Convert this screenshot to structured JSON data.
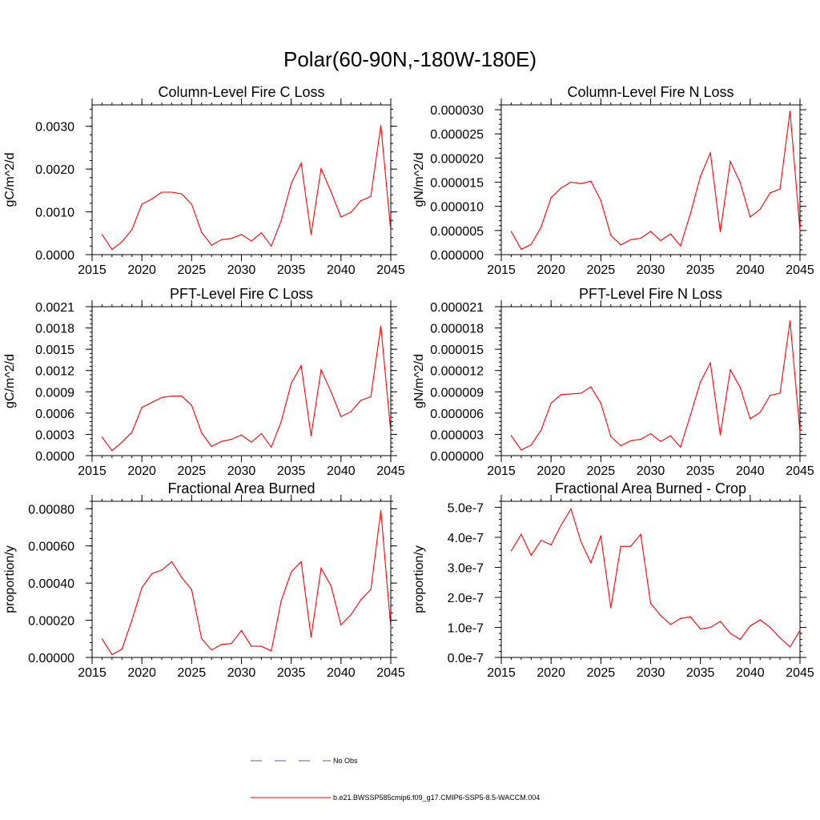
{
  "main_title": "Polar(60-90N,-180W-180E)",
  "colors": {
    "model_line": "#ff0000",
    "obs_line": "#5a5aa8",
    "axis": "#000000"
  },
  "legend": {
    "entries": [
      {
        "label": "No Obs",
        "style": "dashed",
        "color": "#5a5aa8"
      },
      {
        "label": "b.e21.BWSSP585cmip6.f09_g17.CMIP6-SSP5-8.5-WACCM.004",
        "style": "solid",
        "color": "#ff0000"
      }
    ]
  },
  "chart_data": [
    {
      "type": "line",
      "title": "Column-Level Fire C Loss",
      "xlabel": "",
      "ylabel": "gC/m^2/d",
      "xlim": [
        2015,
        2045
      ],
      "ylim": [
        0,
        0.0035
      ],
      "x_ticks": [
        2015,
        2020,
        2025,
        2030,
        2035,
        2040,
        2045
      ],
      "x_tick_labels": [
        "2015",
        "2020",
        "2025",
        "2030",
        "2035",
        "2040",
        "2045"
      ],
      "y_ticks": [
        0,
        0.001,
        0.002,
        0.003
      ],
      "y_tick_labels": [
        "0.0000",
        "0.0010",
        "0.0020",
        "0.0030"
      ],
      "series": [
        {
          "name": "b.e21.BWSSP585cmip6.f09_g17.CMIP6-SSP5-8.5-WACCM.004",
          "x": [
            2016,
            2017,
            2018,
            2019,
            2020,
            2021,
            2022,
            2023,
            2024,
            2025,
            2026,
            2027,
            2028,
            2029,
            2030,
            2031,
            2032,
            2033,
            2034,
            2035,
            2036,
            2037,
            2038,
            2039,
            2040,
            2041,
            2042,
            2043,
            2044,
            2045
          ],
          "values": [
            0.00047,
            0.00012,
            0.0003,
            0.00058,
            0.00118,
            0.0013,
            0.00146,
            0.00146,
            0.00142,
            0.00118,
            0.00052,
            0.00022,
            0.00035,
            0.00038,
            0.00047,
            0.00032,
            0.00051,
            0.0002,
            0.0008,
            0.00166,
            0.00214,
            0.00047,
            0.00201,
            0.00147,
            0.00088,
            0.00099,
            0.00126,
            0.00136,
            0.00302,
            0.00055
          ]
        }
      ]
    },
    {
      "type": "line",
      "title": "Column-Level Fire N Loss",
      "xlabel": "",
      "ylabel": "gN/m^2/d",
      "xlim": [
        2015,
        2045
      ],
      "ylim": [
        0,
        3.1e-05
      ],
      "x_ticks": [
        2015,
        2020,
        2025,
        2030,
        2035,
        2040,
        2045
      ],
      "x_tick_labels": [
        "2015",
        "2020",
        "2025",
        "2030",
        "2035",
        "2040",
        "2045"
      ],
      "y_ticks": [
        0,
        5e-06,
        1e-05,
        1.5e-05,
        2e-05,
        2.5e-05,
        3e-05
      ],
      "y_tick_labels": [
        "0.000000",
        "0.000005",
        "0.000010",
        "0.000015",
        "0.000020",
        "0.000025",
        "0.000030"
      ],
      "series": [
        {
          "name": "b.e21.BWSSP585cmip6.f09_g17.CMIP6-SSP5-8.5-WACCM.004",
          "x": [
            2016,
            2017,
            2018,
            2019,
            2020,
            2021,
            2022,
            2023,
            2024,
            2025,
            2026,
            2027,
            2028,
            2029,
            2030,
            2031,
            2032,
            2033,
            2034,
            2035,
            2036,
            2037,
            2038,
            2039,
            2040,
            2041,
            2042,
            2043,
            2044,
            2045
          ],
          "values": [
            4.8e-06,
            1.1e-06,
            2.1e-06,
            5.7e-06,
            1.18e-05,
            1.38e-05,
            1.5e-05,
            1.47e-05,
            1.52e-05,
            1.12e-05,
            4e-06,
            2e-06,
            3.1e-06,
            3.4e-06,
            4.8e-06,
            2.9e-06,
            4.3e-06,
            1.8e-06,
            8.5e-06,
            1.62e-05,
            2.11e-05,
            4.7e-06,
            1.93e-05,
            1.49e-05,
            7.8e-06,
            9.4e-06,
            1.28e-05,
            1.36e-05,
            2.97e-05,
            5e-06
          ]
        }
      ]
    },
    {
      "type": "line",
      "title": "PFT-Level Fire C Loss",
      "xlabel": "",
      "ylabel": "gC/m^2/d",
      "xlim": [
        2015,
        2045
      ],
      "ylim": [
        0,
        0.0021
      ],
      "x_ticks": [
        2015,
        2020,
        2025,
        2030,
        2035,
        2040,
        2045
      ],
      "x_tick_labels": [
        "2015",
        "2020",
        "2025",
        "2030",
        "2035",
        "2040",
        "2045"
      ],
      "y_ticks": [
        0,
        0.0003,
        0.0006,
        0.0009,
        0.0012,
        0.0015,
        0.0018,
        0.0021
      ],
      "y_tick_labels": [
        "0.0000",
        "0.0003",
        "0.0006",
        "0.0009",
        "0.0012",
        "0.0015",
        "0.0018",
        "0.0021"
      ],
      "series": [
        {
          "name": "b.e21.BWSSP585cmip6.f09_g17.CMIP6-SSP5-8.5-WACCM.004",
          "x": [
            2016,
            2017,
            2018,
            2019,
            2020,
            2021,
            2022,
            2023,
            2024,
            2025,
            2026,
            2027,
            2028,
            2029,
            2030,
            2031,
            2032,
            2033,
            2034,
            2035,
            2036,
            2037,
            2038,
            2039,
            2040,
            2041,
            2042,
            2043,
            2044,
            2045
          ],
          "values": [
            0.00026,
            7e-05,
            0.00019,
            0.00033,
            0.00068,
            0.00075,
            0.00082,
            0.00084,
            0.00084,
            0.00071,
            0.00032,
            0.00013,
            0.0002,
            0.00023,
            0.00029,
            0.00019,
            0.00031,
            0.00012,
            0.00048,
            0.00102,
            0.00127,
            0.00028,
            0.00121,
            0.0009,
            0.00055,
            0.00062,
            0.00078,
            0.00083,
            0.00183,
            0.00033
          ]
        }
      ]
    },
    {
      "type": "line",
      "title": "PFT-Level Fire N Loss",
      "xlabel": "",
      "ylabel": "gN/m^2/d",
      "xlim": [
        2015,
        2045
      ],
      "ylim": [
        0,
        2.1e-05
      ],
      "x_ticks": [
        2015,
        2020,
        2025,
        2030,
        2035,
        2040,
        2045
      ],
      "x_tick_labels": [
        "2015",
        "2020",
        "2025",
        "2030",
        "2035",
        "2040",
        "2045"
      ],
      "y_ticks": [
        0,
        3e-06,
        6e-06,
        9e-06,
        1.2e-05,
        1.5e-05,
        1.8e-05,
        2.1e-05
      ],
      "y_tick_labels": [
        "0.000000",
        "0.000003",
        "0.000006",
        "0.000009",
        "0.000012",
        "0.000015",
        "0.000018",
        "0.000021"
      ],
      "series": [
        {
          "name": "b.e21.BWSSP585cmip6.f09_g17.CMIP6-SSP5-8.5-WACCM.004",
          "x": [
            2016,
            2017,
            2018,
            2019,
            2020,
            2021,
            2022,
            2023,
            2024,
            2025,
            2026,
            2027,
            2028,
            2029,
            2030,
            2031,
            2032,
            2033,
            2034,
            2035,
            2036,
            2037,
            2038,
            2039,
            2040,
            2041,
            2042,
            2043,
            2044,
            2045
          ],
          "values": [
            2.8e-06,
            8e-07,
            1.5e-06,
            3.6e-06,
            7.4e-06,
            8.6e-06,
            8.7e-06,
            8.8e-06,
            9.7e-06,
            7.4e-06,
            2.7e-06,
            1.4e-06,
            2.1e-06,
            2.3e-06,
            3.1e-06,
            2e-06,
            2.8e-06,
            1.2e-06,
            5.7e-06,
            1.04e-05,
            1.31e-05,
            2.9e-06,
            1.21e-05,
            9.6e-06,
            5.2e-06,
            6.1e-06,
            8.5e-06,
            8.8e-06,
            1.9e-05,
            3.3e-06
          ]
        }
      ]
    },
    {
      "type": "line",
      "title": "Fractional Area Burned",
      "xlabel": "",
      "ylabel": "proportion/y",
      "xlim": [
        2015,
        2045
      ],
      "ylim": [
        0,
        0.00084
      ],
      "x_ticks": [
        2015,
        2020,
        2025,
        2030,
        2035,
        2040,
        2045
      ],
      "x_tick_labels": [
        "2015",
        "2020",
        "2025",
        "2030",
        "2035",
        "2040",
        "2045"
      ],
      "y_ticks": [
        0,
        0.0002,
        0.0004,
        0.0006,
        0.0008
      ],
      "y_tick_labels": [
        "0.00000",
        "0.00020",
        "0.00040",
        "0.00060",
        "0.00080"
      ],
      "series": [
        {
          "name": "b.e21.BWSSP585cmip6.f09_g17.CMIP6-SSP5-8.5-WACCM.004",
          "x": [
            2016,
            2017,
            2018,
            2019,
            2020,
            2021,
            2022,
            2023,
            2024,
            2025,
            2026,
            2027,
            2028,
            2029,
            2030,
            2031,
            2032,
            2033,
            2034,
            2035,
            2036,
            2037,
            2038,
            2039,
            2040,
            2041,
            2042,
            2043,
            2044,
            2045
          ],
          "values": [
            0.0001,
            1.5e-05,
            4.5e-05,
            0.0002,
            0.000375,
            0.00045,
            0.00047,
            0.000515,
            0.00043,
            0.000365,
            0.0001,
            4e-05,
            7e-05,
            7.5e-05,
            0.000145,
            6e-05,
            6e-05,
            3.5e-05,
            0.000305,
            0.00046,
            0.000515,
            0.00011,
            0.00048,
            0.000385,
            0.000175,
            0.00023,
            0.00031,
            0.000365,
            0.00079,
            0.00016
          ]
        }
      ]
    },
    {
      "type": "line",
      "title": "Fractional Area Burned - Crop",
      "xlabel": "",
      "ylabel": "proportion/y",
      "xlim": [
        2015,
        2045
      ],
      "ylim": [
        0,
        5.2e-07
      ],
      "x_ticks": [
        2015,
        2020,
        2025,
        2030,
        2035,
        2040,
        2045
      ],
      "x_tick_labels": [
        "2015",
        "2020",
        "2025",
        "2030",
        "2035",
        "2040",
        "2045"
      ],
      "y_ticks": [
        0,
        1e-07,
        2e-07,
        3e-07,
        4e-07,
        5e-07
      ],
      "y_tick_labels": [
        "0.0e-7",
        "1.0e-7",
        "2.0e-7",
        "3.0e-7",
        "4.0e-7",
        "5.0e-7"
      ],
      "series": [
        {
          "name": "b.e21.BWSSP585cmip6.f09_g17.CMIP6-SSP5-8.5-WACCM.004",
          "x": [
            2016,
            2017,
            2018,
            2019,
            2020,
            2021,
            2022,
            2023,
            2024,
            2025,
            2026,
            2027,
            2028,
            2029,
            2030,
            2031,
            2032,
            2033,
            2034,
            2035,
            2036,
            2037,
            2038,
            2039,
            2040,
            2041,
            2042,
            2043,
            2044,
            2045
          ],
          "values": [
            3.55e-07,
            4.1e-07,
            3.4e-07,
            3.9e-07,
            3.75e-07,
            4.4e-07,
            4.95e-07,
            3.85e-07,
            3.15e-07,
            4.05e-07,
            1.65e-07,
            3.7e-07,
            3.7e-07,
            4.1e-07,
            1.8e-07,
            1.4e-07,
            1.1e-07,
            1.3e-07,
            1.35e-07,
            9.5e-08,
            1e-07,
            1.2e-07,
            8e-08,
            6e-08,
            1.05e-07,
            1.25e-07,
            1e-07,
            6.5e-08,
            3.5e-08,
            9e-08
          ]
        }
      ]
    }
  ]
}
